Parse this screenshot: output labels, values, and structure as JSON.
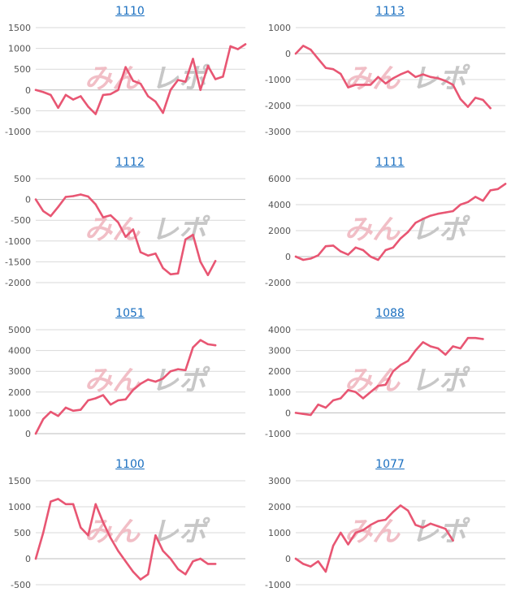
{
  "page": {
    "line_color": "#e85673",
    "link_color": "#1a6fc0",
    "watermark": {
      "text_left": "みん",
      "text_right": "レポ",
      "color_left": "#f0b8c0",
      "color_right": "#c2c2c2"
    }
  },
  "chart_data": [
    {
      "type": "line",
      "title": "1110",
      "ylim": [
        -1000,
        1500
      ],
      "yticks": [
        -1000,
        -500,
        0,
        500,
        1000,
        1500
      ],
      "xlim": [
        0,
        28
      ],
      "values": [
        0,
        -50,
        -120,
        -430,
        -120,
        -230,
        -150,
        -400,
        -580,
        -120,
        -100,
        0,
        550,
        220,
        150,
        -150,
        -280,
        -550,
        0,
        240,
        200,
        750,
        0,
        580,
        260,
        320,
        1050,
        980,
        1100
      ]
    },
    {
      "type": "line",
      "title": "1113",
      "ylim": [
        -3000,
        1000
      ],
      "yticks": [
        -3000,
        -2000,
        -1000,
        0,
        1000
      ],
      "xlim": [
        0,
        28
      ],
      "values": [
        0,
        300,
        150,
        -200,
        -550,
        -600,
        -780,
        -1300,
        -1200,
        -1200,
        -1200,
        -900,
        -1150,
        -950,
        -800,
        -680,
        -900,
        -800,
        -900,
        -950,
        -1050,
        -1200,
        -1750,
        -2050,
        -1700,
        -1780,
        -2100
      ]
    },
    {
      "type": "line",
      "title": "1112",
      "ylim": [
        -2000,
        500
      ],
      "yticks": [
        -2000,
        -1500,
        -1000,
        -500,
        0,
        500
      ],
      "xlim": [
        0,
        28
      ],
      "values": [
        0,
        -280,
        -400,
        -180,
        60,
        80,
        120,
        70,
        -120,
        -430,
        -380,
        -550,
        -900,
        -720,
        -1270,
        -1350,
        -1300,
        -1650,
        -1800,
        -1780,
        -960,
        -850,
        -1500,
        -1820,
        -1480
      ]
    },
    {
      "type": "line",
      "title": "1111",
      "ylim": [
        -2000,
        6000
      ],
      "yticks": [
        -2000,
        0,
        2000,
        4000,
        6000
      ],
      "xlim": [
        0,
        28
      ],
      "values": [
        0,
        -250,
        -150,
        100,
        800,
        850,
        400,
        150,
        700,
        500,
        0,
        -250,
        500,
        700,
        1400,
        1900,
        2600,
        2900,
        3150,
        3300,
        3400,
        3500,
        4000,
        4200,
        4600,
        4300,
        5100,
        5200,
        5600
      ]
    },
    {
      "type": "line",
      "title": "1051",
      "ylim": [
        0,
        5000
      ],
      "yticks": [
        0,
        1000,
        2000,
        3000,
        4000,
        5000
      ],
      "xlim": [
        0,
        28
      ],
      "values": [
        0,
        700,
        1050,
        850,
        1250,
        1100,
        1150,
        1600,
        1700,
        1850,
        1400,
        1600,
        1650,
        2100,
        2400,
        2600,
        2500,
        2650,
        3000,
        3100,
        3050,
        4150,
        4500,
        4300,
        4250
      ]
    },
    {
      "type": "line",
      "title": "1088",
      "ylim": [
        -1000,
        4000
      ],
      "yticks": [
        -1000,
        0,
        1000,
        2000,
        3000,
        4000
      ],
      "xlim": [
        0,
        28
      ],
      "values": [
        0,
        -50,
        -100,
        400,
        250,
        600,
        700,
        1100,
        1000,
        700,
        1000,
        1300,
        1350,
        2000,
        2300,
        2500,
        3000,
        3400,
        3200,
        3100,
        2800,
        3200,
        3100,
        3600,
        3600,
        3550
      ]
    },
    {
      "type": "line",
      "title": "1100",
      "ylim": [
        -500,
        1500
      ],
      "yticks": [
        -500,
        0,
        500,
        1000,
        1500
      ],
      "xlim": [
        0,
        28
      ],
      "values": [
        0,
        500,
        1100,
        1150,
        1050,
        1050,
        600,
        450,
        1050,
        700,
        400,
        150,
        -50,
        -250,
        -400,
        -300,
        450,
        150,
        0,
        -200,
        -300,
        -50,
        0,
        -100,
        -100
      ]
    },
    {
      "type": "line",
      "title": "1077",
      "ylim": [
        -1000,
        3000
      ],
      "yticks": [
        -1000,
        0,
        1000,
        2000,
        3000
      ],
      "xlim": [
        0,
        28
      ],
      "values": [
        0,
        -200,
        -300,
        -100,
        -500,
        500,
        1000,
        550,
        1000,
        1100,
        1300,
        1450,
        1500,
        1800,
        2050,
        1850,
        1300,
        1200,
        1350,
        1250,
        1150,
        700
      ]
    }
  ]
}
